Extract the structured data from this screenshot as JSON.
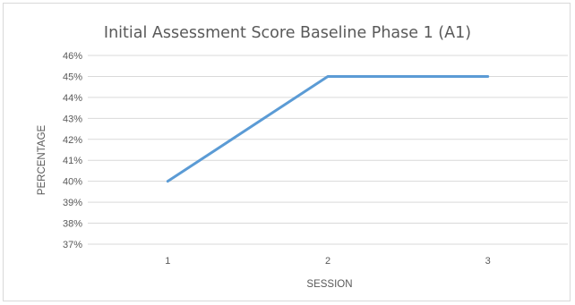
{
  "chart_data": {
    "type": "line",
    "title": "Initial Assessment Score Baseline Phase 1 (A1)",
    "xlabel": "SESSION",
    "ylabel": "PERCENTAGE",
    "categories": [
      "1",
      "2",
      "3"
    ],
    "yticks": [
      "37%",
      "38%",
      "39%",
      "40%",
      "41%",
      "42%",
      "43%",
      "44%",
      "45%",
      "46%"
    ],
    "ylim": [
      37,
      46
    ],
    "grid": true,
    "series": [
      {
        "values": [
          40,
          45,
          45
        ],
        "color": "#5b9bd5"
      }
    ]
  }
}
